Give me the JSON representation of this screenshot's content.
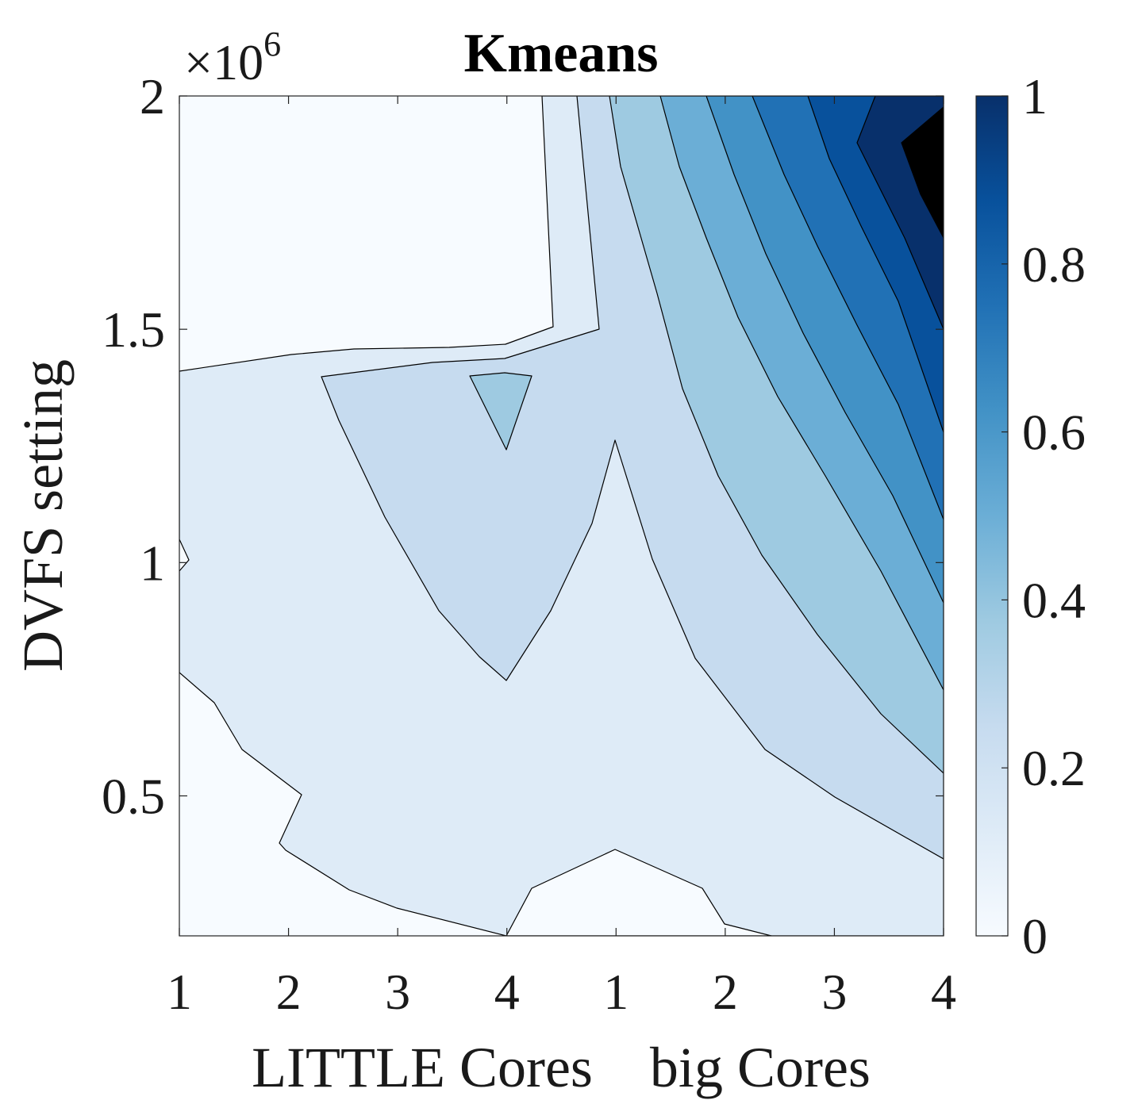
{
  "chart_data": {
    "type": "contour",
    "title": "Kmeans",
    "xlabel": "LITTLE Cores    big Cores",
    "ylabel": "DVFS setting",
    "y_exponent_label": "×10",
    "y_exponent_power": "6",
    "x_tick_labels": [
      "1",
      "2",
      "3",
      "4",
      "1",
      "2",
      "3",
      "4"
    ],
    "y_ticks": [
      {
        "value": 0.5,
        "label": "0.5"
      },
      {
        "value": 1,
        "label": "1"
      },
      {
        "value": 1.5,
        "label": "1.5"
      },
      {
        "value": 2,
        "label": "2"
      }
    ],
    "ylim": [
      0.2,
      2
    ],
    "xlim": [
      1,
      8
    ],
    "colorbar": {
      "range": [
        0,
        1
      ],
      "ticks": [
        {
          "value": 0,
          "label": "0"
        },
        {
          "value": 0.2,
          "label": "0.2"
        },
        {
          "value": 0.4,
          "label": "0.4"
        },
        {
          "value": 0.6,
          "label": "0.6"
        },
        {
          "value": 0.8,
          "label": "0.8"
        },
        {
          "value": 1,
          "label": "1"
        }
      ],
      "colormap": [
        "#f7fbff",
        "#deebf7",
        "#c6dbef",
        "#9ecae1",
        "#6baed6",
        "#4292c6",
        "#2171b5",
        "#08519c",
        "#08306b"
      ]
    },
    "levels": [
      0.05,
      0.15,
      0.25,
      0.35,
      0.45,
      0.55,
      0.65,
      0.75,
      0.85
    ]
  }
}
